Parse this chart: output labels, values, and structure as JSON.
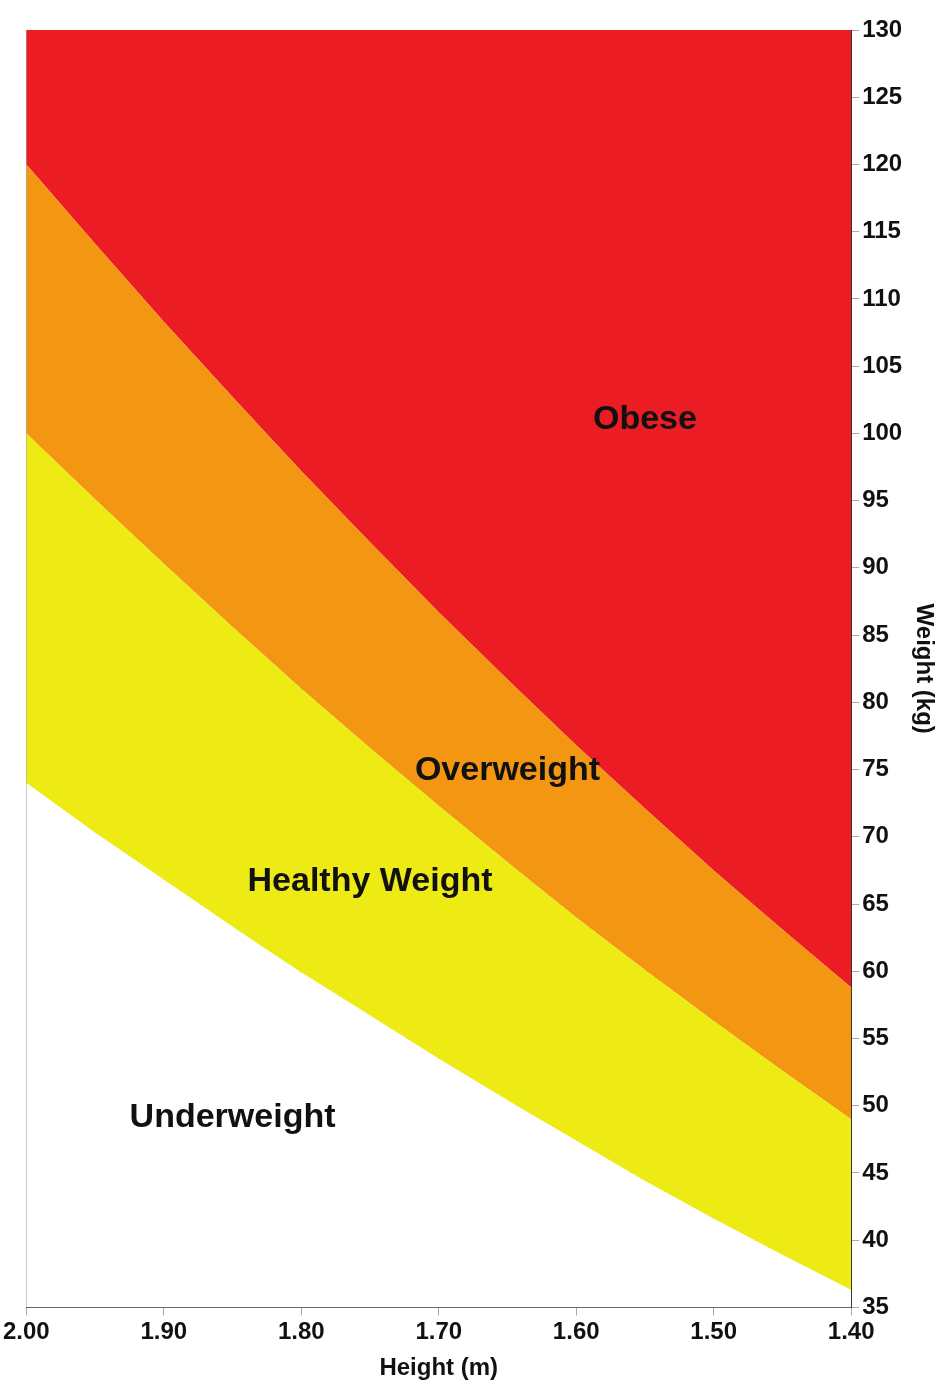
{
  "chart_data": {
    "type": "area",
    "xlabel": "Height (m)",
    "ylabel": "Weight (kg)",
    "x": [
      2.0,
      1.95,
      1.9,
      1.85,
      1.8,
      1.75,
      1.7,
      1.65,
      1.6,
      1.55,
      1.5,
      1.45,
      1.4
    ],
    "series": [
      {
        "name": "Underweight",
        "color": "#ffffff",
        "values": [
          74,
          70.3,
          66.8,
          63.3,
          59.9,
          56.7,
          53.5,
          50.4,
          47.4,
          44.4,
          41.6,
          38.9,
          36.3
        ]
      },
      {
        "name": "Healthy Weight",
        "color": "#eeea14",
        "values": [
          100,
          95.1,
          90.3,
          85.6,
          81,
          76.6,
          72.3,
          68.1,
          64,
          60.1,
          56.3,
          52.6,
          49
        ]
      },
      {
        "name": "Overweight",
        "color": "#f39612",
        "values": [
          120,
          114.1,
          108.3,
          102.7,
          97.2,
          91.9,
          86.7,
          81.7,
          76.8,
          72.1,
          67.5,
          63.1,
          58.8
        ]
      },
      {
        "name": "Obese",
        "color": "#ec1c24",
        "values": [
          130,
          130,
          130,
          130,
          130,
          130,
          130,
          130,
          130,
          130,
          130,
          130,
          130
        ]
      }
    ],
    "xlim": [
      2.0,
      1.4
    ],
    "xticks": [
      {
        "value": 2.0,
        "label": "2.00"
      },
      {
        "value": 1.9,
        "label": "1.90"
      },
      {
        "value": 1.8,
        "label": "1.80"
      },
      {
        "value": 1.7,
        "label": "1.70"
      },
      {
        "value": 1.6,
        "label": "1.60"
      },
      {
        "value": 1.5,
        "label": "1.50"
      },
      {
        "value": 1.4,
        "label": "1.40"
      }
    ],
    "ylim": [
      35,
      130
    ],
    "yticks": [
      35,
      40,
      45,
      50,
      55,
      60,
      65,
      70,
      75,
      80,
      85,
      90,
      95,
      100,
      105,
      110,
      115,
      120,
      125,
      130
    ],
    "grid": true,
    "legend": false,
    "marker": "none"
  }
}
